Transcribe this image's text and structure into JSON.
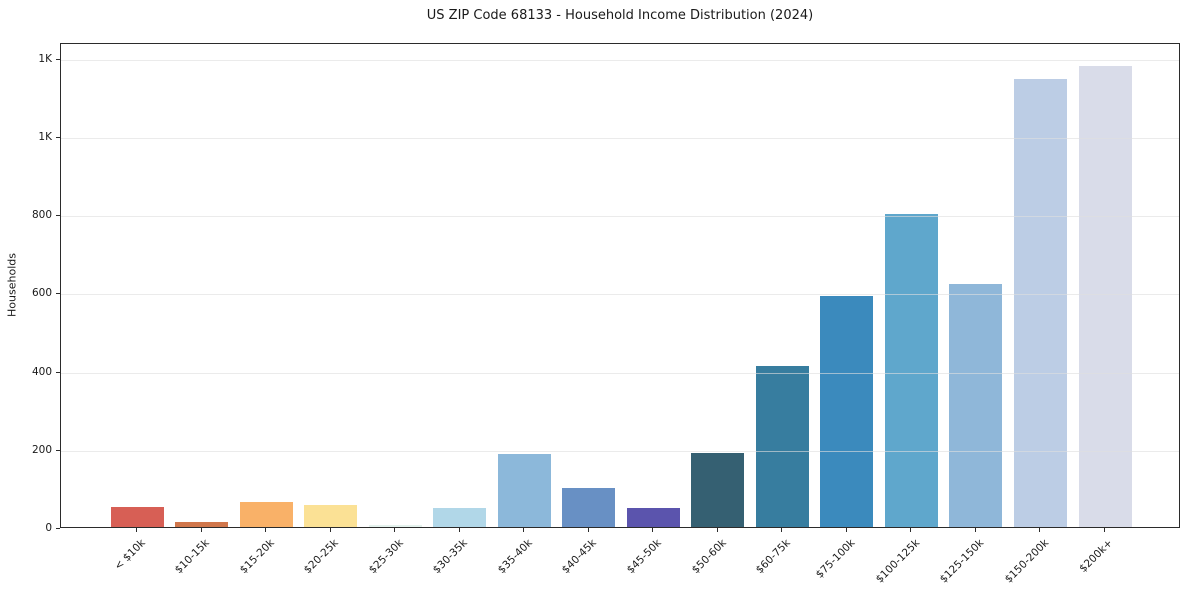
{
  "chart_data": {
    "type": "bar",
    "title": "US ZIP Code 68133 - Household Income Distribution (2024)",
    "xlabel": "",
    "ylabel": "Households",
    "categories": [
      "< $10k",
      "$10-15k",
      "$15-20k",
      "$20-25k",
      "$25-30k",
      "$30-35k",
      "$35-40k",
      "$40-45k",
      "$45-50k",
      "$50-60k",
      "$60-75k",
      "$75-100k",
      "$100-125k",
      "$125-150k",
      "$150-200k",
      "$200k+"
    ],
    "values": [
      50,
      12,
      65,
      57,
      5,
      48,
      187,
      100,
      49,
      190,
      412,
      590,
      800,
      622,
      1145,
      1178
    ],
    "bar_colors": [
      "#d75f55",
      "#d0764b",
      "#f9b168",
      "#fbe195",
      "#e4f2ed",
      "#b1d7e8",
      "#8cb8da",
      "#6890c4",
      "#5b54ad",
      "#356072",
      "#377d9f",
      "#3b8abd",
      "#5fa7cc",
      "#8fb7d9",
      "#bccde5",
      "#d9dce9"
    ],
    "ylim": [
      0,
      1240
    ],
    "yticks": [
      {
        "value": 0,
        "label": "0"
      },
      {
        "value": 200,
        "label": "200"
      },
      {
        "value": 400,
        "label": "400"
      },
      {
        "value": 600,
        "label": "600"
      },
      {
        "value": 800,
        "label": "800"
      },
      {
        "value": 1000,
        "label": "1K"
      },
      {
        "value": 1200,
        "label": "1K"
      }
    ],
    "grid": "horizontal",
    "legend": "none"
  },
  "style_colors": {
    "background": "#ffffff",
    "spine": "#2b2b2b",
    "grid": "#dfdfdf",
    "text": "#1a1a1a"
  }
}
